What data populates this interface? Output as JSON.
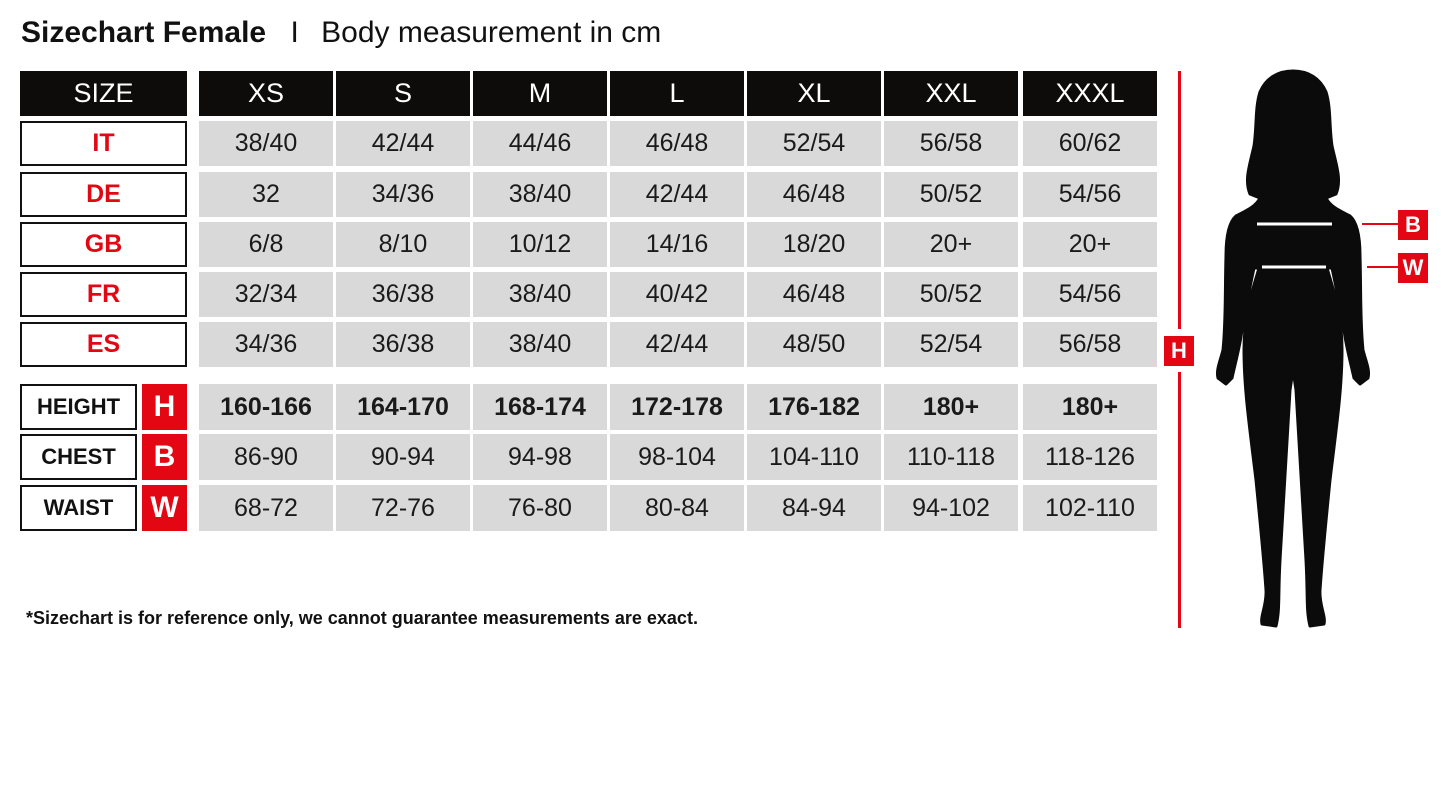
{
  "title": {
    "bold": "Sizechart Female",
    "separator": "I",
    "subtitle": "Body measurement in cm"
  },
  "header": {
    "label": "SIZE",
    "sizes": [
      "XS",
      "S",
      "M",
      "L",
      "XL",
      "XXL",
      "XXXL"
    ]
  },
  "country_rows": [
    {
      "label": "IT",
      "values": [
        "38/40",
        "42/44",
        "44/46",
        "46/48",
        "52/54",
        "56/58",
        "60/62"
      ]
    },
    {
      "label": "DE",
      "values": [
        "32",
        "34/36",
        "38/40",
        "42/44",
        "46/48",
        "50/52",
        "54/56"
      ]
    },
    {
      "label": "GB",
      "values": [
        "6/8",
        "8/10",
        "10/12",
        "14/16",
        "18/20",
        "20+",
        "20+"
      ]
    },
    {
      "label": "FR",
      "values": [
        "32/34",
        "36/38",
        "38/40",
        "40/42",
        "46/48",
        "50/52",
        "54/56"
      ]
    },
    {
      "label": "ES",
      "values": [
        "34/36",
        "36/38",
        "38/40",
        "42/44",
        "48/50",
        "52/54",
        "56/58"
      ]
    }
  ],
  "measure_rows": [
    {
      "label": "HEIGHT",
      "code": "H",
      "values": [
        "160-166",
        "164-170",
        "168-174",
        "172-178",
        "176-182",
        "180+",
        "180+"
      ]
    },
    {
      "label": "CHEST",
      "code": "B",
      "values": [
        "86-90",
        "90-94",
        "94-98",
        "98-104",
        "104-110",
        "110-118",
        "118-126"
      ]
    },
    {
      "label": "WAIST",
      "code": "W",
      "values": [
        "68-72",
        "72-76",
        "76-80",
        "80-84",
        "84-94",
        "94-102",
        "102-110"
      ]
    }
  ],
  "note": "*Sizechart is for reference only, we cannot guarantee measurements are exact.",
  "figure": {
    "height_tag": "H",
    "bust_tag": "B",
    "waist_tag": "W"
  },
  "colors": {
    "accent": "#e30613",
    "header_bg": "#0d0c0b",
    "cell_bg": "#d9d9d9"
  }
}
